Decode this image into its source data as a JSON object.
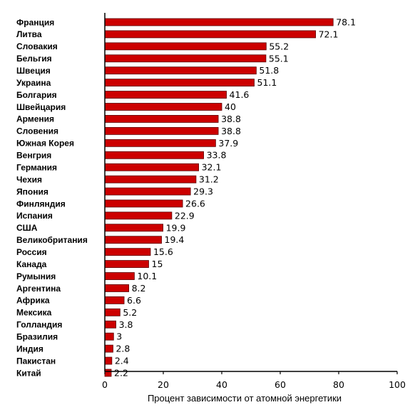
{
  "chart_data": {
    "type": "bar",
    "orientation": "horizontal",
    "categories": [
      "Франция",
      "Литва",
      "Словакия",
      "Бельгия",
      "Швеция",
      "Украина",
      "Болгария",
      "Швейцария",
      "Армения",
      "Словения",
      "Южная Корея",
      "Венгрия",
      "Германия",
      "Чехия",
      "Япония",
      "Финляндия",
      "Испания",
      "США",
      "Великобритания",
      "Россия",
      "Канада",
      "Румыния",
      "Аргентина",
      "Африка",
      "Мексика",
      "Голландия",
      "Бразилия",
      "Индия",
      "Пакистан",
      "Китай"
    ],
    "values": [
      78.1,
      72.1,
      55.2,
      55.1,
      51.8,
      51.1,
      41.6,
      40,
      38.8,
      38.8,
      37.9,
      33.8,
      32.1,
      31.2,
      29.3,
      26.6,
      22.9,
      19.9,
      19.4,
      15.6,
      15,
      10.1,
      8.2,
      6.6,
      5.2,
      3.8,
      3,
      2.8,
      2.4,
      2.2
    ],
    "value_labels": [
      "78.1",
      "72.1",
      "55.2",
      "55.1",
      "51.8",
      "51.1",
      "41.6",
      "40",
      "38.8",
      "38.8",
      "37.9",
      "33.8",
      "32.1",
      "31.2",
      "29.3",
      "26.6",
      "22.9",
      "19.9",
      "19.4",
      "15.6",
      "15",
      "10.1",
      "8.2",
      "6.6",
      "5.2",
      "3.8",
      "3",
      "2.8",
      "2.4",
      "2.2"
    ],
    "xticks": [
      0,
      20,
      40,
      60,
      80,
      100
    ],
    "xlim": [
      0,
      100
    ],
    "xlabel": "Процент зависимости от атомной энергетики",
    "title": "",
    "grid": false,
    "legend": "none",
    "colors": {
      "bar_fill": "#cc0000",
      "bar_stroke": "#5a0000",
      "axis": "#000000"
    }
  }
}
